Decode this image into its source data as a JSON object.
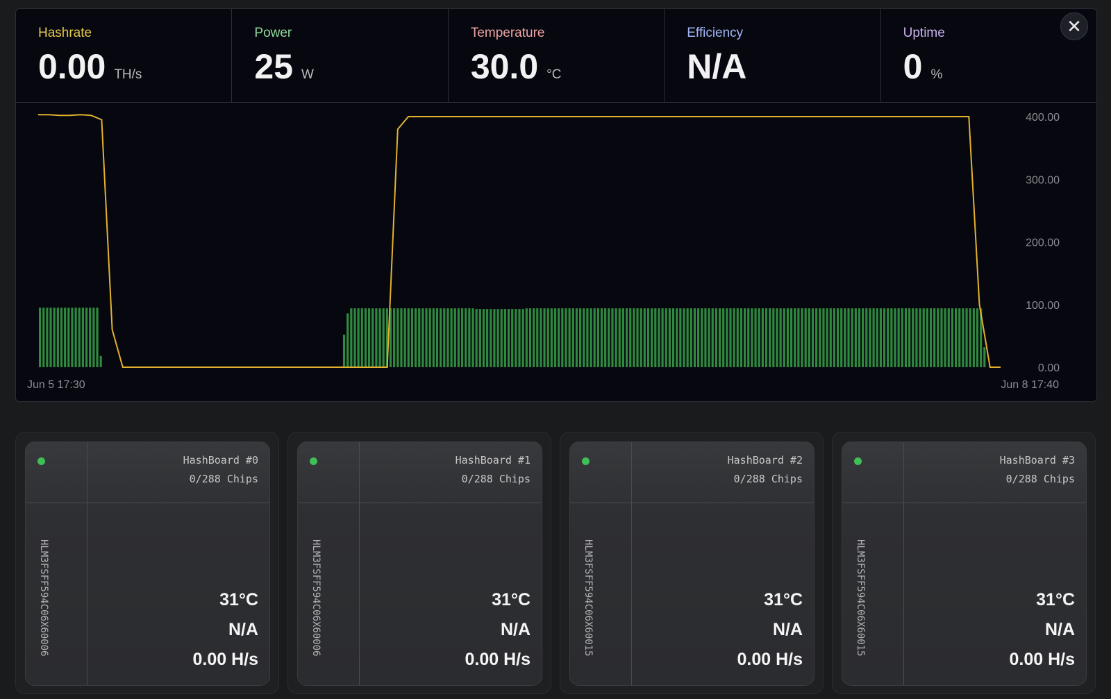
{
  "metrics": [
    {
      "label": "Hashrate",
      "value": "0.00",
      "unit": "TH/s",
      "color": "#e6c84a"
    },
    {
      "label": "Power",
      "value": "25",
      "unit": "W",
      "color": "#8fd79a"
    },
    {
      "label": "Temperature",
      "value": "30.0",
      "unit": "°C",
      "color": "#f0a4a4"
    },
    {
      "label": "Efficiency",
      "value": "N/A",
      "unit": "",
      "color": "#9fb4f3"
    },
    {
      "label": "Uptime",
      "value": "0",
      "unit": "%",
      "color": "#c9b3ef"
    }
  ],
  "close_icon": "close-icon",
  "chart_data": {
    "type": "line",
    "x_start_label": "Jun 5 17:30",
    "x_end_label": "Jun 8 17:40",
    "y_ticks": [
      "0.00",
      "100.00",
      "200.00",
      "300.00",
      "400.00"
    ],
    "ylim": [
      0,
      400
    ],
    "line_color": "#e2b22f",
    "bar_color": "#2f8a3f",
    "series": [
      {
        "values": [
          403,
          403,
          402,
          402,
          403,
          402,
          395,
          60,
          0,
          0,
          0,
          0,
          0,
          0,
          0,
          0,
          0,
          0,
          0,
          0,
          0,
          0,
          0,
          0,
          0,
          0,
          0,
          0,
          0,
          0,
          0,
          0,
          0,
          0,
          380,
          400,
          400,
          400,
          400,
          400,
          400,
          400,
          400,
          400,
          400,
          400,
          400,
          400,
          400,
          400,
          400,
          400,
          400,
          400,
          400,
          400,
          400,
          400,
          400,
          400,
          400,
          400,
          400,
          400,
          400,
          400,
          400,
          400,
          400,
          400,
          400,
          400,
          400,
          400,
          400,
          400,
          400,
          400,
          400,
          400,
          400,
          400,
          400,
          400,
          400,
          400,
          400,
          400,
          400,
          100,
          0,
          0
        ]
      },
      {
        "values": [
          95,
          95,
          95,
          95,
          95,
          95,
          95,
          95,
          95,
          95,
          95,
          95,
          95,
          95,
          95,
          95,
          95,
          18,
          0,
          0,
          0,
          0,
          0,
          0,
          0,
          0,
          0,
          0,
          0,
          0,
          0,
          0,
          0,
          0,
          0,
          0,
          0,
          0,
          0,
          0,
          0,
          0,
          0,
          0,
          0,
          0,
          0,
          0,
          0,
          0,
          0,
          0,
          0,
          0,
          0,
          0,
          0,
          0,
          0,
          0,
          0,
          0,
          0,
          0,
          0,
          0,
          0,
          0,
          0,
          0,
          0,
          0,
          0,
          0,
          0,
          0,
          0,
          0,
          0,
          0,
          0,
          0,
          0,
          0,
          0,
          52,
          86,
          94,
          94,
          94,
          94,
          94,
          94,
          94,
          94,
          94,
          94,
          94,
          94,
          94,
          94,
          94,
          94,
          94,
          94,
          94,
          94,
          94,
          94,
          94,
          94,
          94,
          94,
          94,
          94,
          94,
          94,
          94,
          94,
          94,
          94,
          94,
          93,
          93,
          93,
          93,
          93,
          93,
          93,
          93,
          93,
          93,
          93,
          93,
          93,
          93,
          94,
          94,
          94,
          94,
          94,
          94,
          94,
          94,
          94,
          94,
          94,
          94,
          94,
          94,
          94,
          94,
          94,
          94,
          94,
          94,
          94,
          94,
          94,
          94,
          94,
          94,
          94,
          94,
          94,
          94,
          94,
          94,
          94,
          94,
          94,
          94,
          94,
          94,
          94,
          94,
          94,
          94,
          94,
          94,
          94,
          94,
          94,
          94,
          94,
          94,
          94,
          94,
          94,
          94,
          94,
          94,
          94,
          94,
          94,
          94,
          94,
          94,
          94,
          94,
          94,
          94,
          94,
          94,
          94,
          94,
          94,
          94,
          94,
          94,
          94,
          94,
          94,
          94,
          94,
          94,
          94,
          94,
          94,
          94,
          94,
          94,
          94,
          94,
          94,
          94,
          94,
          94,
          94,
          94,
          94,
          94,
          94,
          94,
          94,
          94,
          94,
          94,
          94,
          94,
          94,
          94,
          94,
          94,
          94,
          94,
          94,
          94,
          94,
          94,
          94,
          94,
          94,
          94,
          94,
          94,
          94,
          94,
          94,
          94,
          94,
          94,
          94,
          94,
          32,
          0,
          0,
          0,
          0
        ]
      }
    ]
  },
  "hashboards": [
    {
      "name": "HashBoard #0",
      "chips": "0/288 Chips",
      "serial": "HLM3FSFF594C06X60006",
      "temp": "31°C",
      "efficiency": "N/A",
      "hashrate": "0.00 H/s",
      "status_color": "#3fbf56"
    },
    {
      "name": "HashBoard #1",
      "chips": "0/288 Chips",
      "serial": "HLM3FSFF594C06X60006",
      "temp": "31°C",
      "efficiency": "N/A",
      "hashrate": "0.00 H/s",
      "status_color": "#3fbf56"
    },
    {
      "name": "HashBoard #2",
      "chips": "0/288 Chips",
      "serial": "HLM3FSFF594C06X60015",
      "temp": "31°C",
      "efficiency": "N/A",
      "hashrate": "0.00 H/s",
      "status_color": "#3fbf56"
    },
    {
      "name": "HashBoard #3",
      "chips": "0/288 Chips",
      "serial": "HLM3FSFF594C06X60015",
      "temp": "31°C",
      "efficiency": "N/A",
      "hashrate": "0.00 H/s",
      "status_color": "#3fbf56"
    }
  ]
}
